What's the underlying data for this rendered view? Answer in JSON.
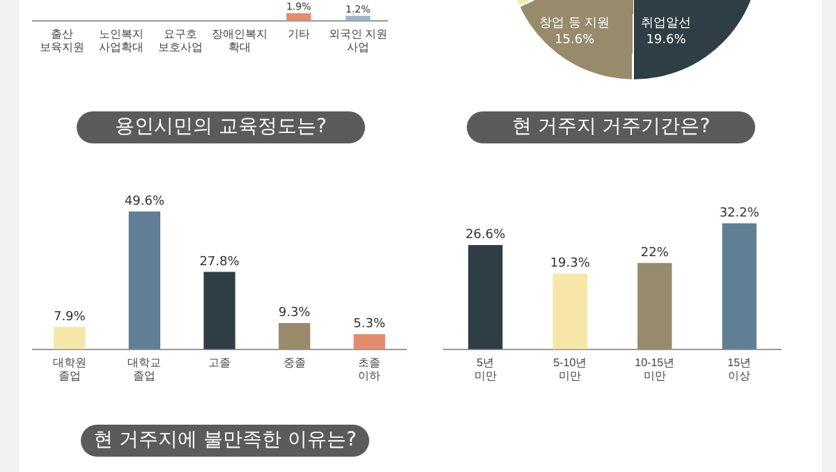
{
  "chart_data": [
    {
      "type": "bar",
      "categories": [
        "출산\n보육지원",
        "노인복지\n사업확대",
        "요구호\n보호사업",
        "장애인복지\n확대",
        "기타",
        "외국인 지원\n사업"
      ],
      "colors": [
        "#607f94",
        "#2f3e44",
        "#978b6c",
        "#f6e6a8",
        "#e38c6c",
        "#9bb6cb"
      ],
      "values": [
        null,
        null,
        null,
        null,
        1.9,
        1.2
      ],
      "value_labels": [
        null,
        null,
        null,
        null,
        "1.9%",
        "1.2%"
      ]
    },
    {
      "type": "other",
      "annotations": [
        "창업 등 지원\n15.6%",
        "취업알선\n19.6%"
      ]
    },
    {
      "type": "bar",
      "title": "용인시민의 교육정도는?",
      "categories": [
        "대학원\n졸업",
        "대학교\n졸업",
        "고졸",
        "중졸",
        "초졸\n이하"
      ],
      "colors": [
        "#f6e6a8",
        "#607f94",
        "#2f3e44",
        "#978b6c",
        "#e38c6c"
      ],
      "values": [
        7.9,
        49.6,
        27.8,
        9.3,
        5.3
      ],
      "value_labels": [
        "7.9%",
        "49.6%",
        "27.8%",
        "9.3%",
        "5.3%"
      ]
    },
    {
      "type": "bar",
      "title": "현 거주지 거주기간은?",
      "categories": [
        "5년\n미만",
        "5-10년\n미만",
        "10-15년\n미만",
        "15년\n이상"
      ],
      "colors": [
        "#2f3e44",
        "#f6e6a8",
        "#978b6c",
        "#607f94"
      ],
      "values": [
        26.6,
        19.3,
        22,
        32.2
      ],
      "value_labels": [
        "26.6%",
        "19.3%",
        "22%",
        "32.2%"
      ]
    },
    {
      "type": "other",
      "title": "현 거주지에 불만족한 이유는?"
    }
  ]
}
